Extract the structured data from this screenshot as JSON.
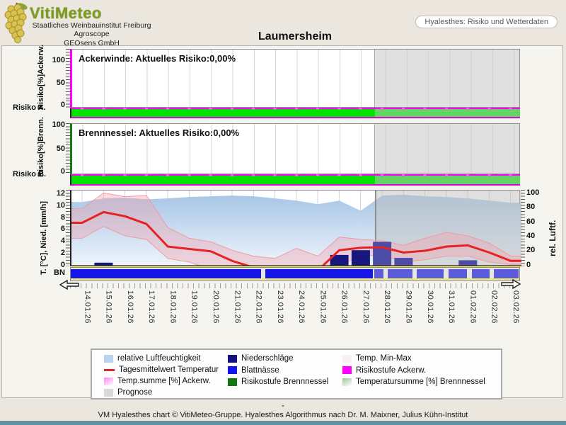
{
  "header": {
    "logo_title": "VitiMeteo",
    "org_lines": [
      "Staatliches Weinbauinstitut Freiburg",
      "Agroscope",
      "GEOsens GmbH"
    ],
    "station_title": "Laumersheim",
    "mode_button_label": "Hyalesthes: Risiko und Wetterdaten"
  },
  "risk_panels": [
    {
      "key": "ackerwinde",
      "header": "Ackerwinde: Aktuelles Risiko:0,00%",
      "axis_label": "Risiko[%]Ackerw.",
      "ticks": [
        "100",
        "50",
        "0"
      ],
      "side_label": "Risiko A.",
      "current_risk": "0,00%"
    },
    {
      "key": "brennnessel",
      "header": "Brennnessel: Aktuelles Risiko:0,00%",
      "axis_label": "Risiko[%]Brenn.",
      "ticks": [
        "100",
        "50",
        "0"
      ],
      "side_label": "Risiko B.",
      "current_risk": "0,00%"
    }
  ],
  "weather_axes": {
    "left_label": "T. [°C], Nied. [mm/h]",
    "left_ticks": [
      "12",
      "10",
      "8",
      "6",
      "4",
      "2",
      "0"
    ],
    "right_ticks": [
      "100",
      "80",
      "60",
      "40",
      "20",
      "0"
    ],
    "right_label": "rel. Luftf.",
    "bn_label": "BN"
  },
  "legend": {
    "columns": [
      [
        {
          "label": "relative Luftfeuchtigkeit",
          "swatch": "humidity"
        },
        {
          "label": "Tagesmittelwert Temperatur",
          "swatch": "temp-line"
        },
        {
          "label": "Temp.summe [%] Ackerw.",
          "swatch": "tempsum-ackerw"
        },
        {
          "label": "Prognose",
          "swatch": "prognose"
        }
      ],
      [
        {
          "label": "Niederschläge",
          "swatch": "precip"
        },
        {
          "label": "Blattnässe",
          "swatch": "leafwet"
        },
        {
          "label": "Risikostufe Brennnessel",
          "swatch": "risk-brenn"
        }
      ],
      [
        {
          "label": "Temp. Min-Max",
          "swatch": "minmax"
        },
        {
          "label": "Risikostufe Ackerw.",
          "swatch": "risk-ackerw"
        },
        {
          "label": "Temperatursumme [%] Brennnessel",
          "swatch": "tempsum-brenn"
        }
      ]
    ]
  },
  "footer": {
    "dash": "-",
    "credit": "VM Hyalesthes chart © VitiMeteo-Gruppe. Hyalesthes Algorithmus nach Dr. M. Maixner, Julius Kühn-Institut"
  },
  "colors": {
    "risk_bar_green": "#00e400",
    "risk_bar_green_forecast": "#62d662",
    "risk_ackerw_magenta": "#ff00ff",
    "risk_brenn_green": "#117711",
    "temp_red": "#e62222",
    "precip_navy": "#121280",
    "leafwet_blue": "#1414ee",
    "humidity_blue": "#b7d3ee",
    "prognose_gray": "#d9d9d9",
    "footer_bar_teal": "#64919f"
  },
  "chart_data": [
    {
      "id": "ackerwinde-risk",
      "type": "area",
      "title": "Ackerwinde: Aktuelles Risiko:0,00%",
      "ylabel": "Risiko[%]Ackerw.",
      "ylim": [
        0,
        100
      ],
      "values": [
        0,
        0,
        0,
        0,
        0,
        0,
        0,
        0,
        0,
        0,
        0,
        0,
        0,
        0,
        0,
        0,
        0,
        0,
        0,
        0,
        0
      ],
      "temp_sum_percent": 0
    },
    {
      "id": "brennnessel-risk",
      "type": "area",
      "title": "Brennnessel: Aktuelles Risiko:0,00%",
      "ylabel": "Risiko[%]Brenn.",
      "ylim": [
        0,
        100
      ],
      "values": [
        0,
        0,
        0,
        0,
        0,
        0,
        0,
        0,
        0,
        0,
        0,
        0,
        0,
        0,
        0,
        0,
        0,
        0,
        0,
        0,
        0
      ],
      "temp_sum_percent": 0
    },
    {
      "id": "weather",
      "type": "line",
      "x": [
        "14.01.26",
        "15.01.26",
        "16.01.26",
        "17.01.26",
        "18.01.26",
        "19.01.26",
        "20.01.26",
        "21.01.26",
        "22.01.26",
        "23.01.26",
        "24.01.26",
        "25.01.26",
        "26.01.26",
        "27.01.26",
        "28.01.26",
        "29.01.26",
        "30.01.26",
        "31.01.26",
        "01.02.26",
        "02.02.26",
        "03.02.26"
      ],
      "series": [
        {
          "name": "relative Luftfeuchtigkeit",
          "axis": "right",
          "unit": "%",
          "values": [
            88,
            93,
            94,
            92,
            93,
            95,
            96,
            97,
            96,
            93,
            90,
            85,
            90,
            76,
            97,
            98,
            96,
            95,
            93,
            90,
            87
          ]
        },
        {
          "name": "Tagesmittelwert Temperatur",
          "axis": "left",
          "unit": "°C",
          "values": [
            7.2,
            9.0,
            8.3,
            7.0,
            3.2,
            2.8,
            2.4,
            0.8,
            -0.3,
            -0.6,
            -0.3,
            -0.8,
            2.6,
            3.0,
            3.1,
            2.2,
            2.5,
            3.2,
            3.4,
            2.2,
            0.8
          ]
        },
        {
          "name": "Temp. Max",
          "axis": "left",
          "unit": "°C",
          "values": [
            9.6,
            12.2,
            11.6,
            11.8,
            6.4,
            4.6,
            4.0,
            2.6,
            1.6,
            1.2,
            2.9,
            1.6,
            4.8,
            4.4,
            4.2,
            3.4,
            4.6,
            5.6,
            5.0,
            3.8,
            1.6
          ]
        },
        {
          "name": "Temp. Min",
          "axis": "left",
          "unit": "°C",
          "values": [
            4.6,
            6.6,
            5.0,
            4.4,
            1.2,
            0.6,
            -0.6,
            -1.4,
            -2.0,
            -2.0,
            -1.6,
            -2.6,
            0.0,
            1.6,
            1.8,
            0.6,
            1.0,
            1.6,
            1.6,
            0.6,
            0.2
          ]
        },
        {
          "name": "Niederschläge",
          "type": "bar",
          "axis": "left",
          "unit": "mm",
          "values": [
            0,
            0.5,
            0,
            0,
            0,
            0,
            0,
            0,
            0,
            0,
            0,
            0,
            1.8,
            2.6,
            4.0,
            1.3,
            0,
            0,
            0.9,
            0,
            0
          ]
        }
      ],
      "blattnaesse_segments": {
        "observed": [
          [
            0,
            0.424
          ],
          [
            0.433,
            0.674
          ]
        ],
        "forecast": [
          [
            0.676,
            0.697
          ],
          [
            0.706,
            0.762
          ],
          [
            0.772,
            0.832
          ],
          [
            0.842,
            0.884
          ],
          [
            0.894,
            0.934
          ],
          [
            0.944,
            0.998
          ]
        ]
      },
      "prognose_start_frac": 0.676,
      "left_ylim": [
        -2,
        12.6
      ],
      "right_ylim": [
        0,
        100
      ],
      "xlabel": "",
      "ylabel": "T. [°C], Nied. [mm/h] / rel. Luftf."
    }
  ]
}
